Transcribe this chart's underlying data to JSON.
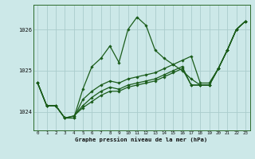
{
  "bg_color": "#cce8e8",
  "grid_color": "#aacccc",
  "line_color": "#1a5c1a",
  "title": "Graphe pression niveau de la mer (hPa)",
  "xlim": [
    -0.5,
    23.5
  ],
  "ylim": [
    1023.55,
    1026.6
  ],
  "yticks": [
    1024,
    1025,
    1026
  ],
  "xtick_labels": [
    "0",
    "1",
    "2",
    "3",
    "4",
    "5",
    "6",
    "7",
    "8",
    "9",
    "10",
    "11",
    "12",
    "13",
    "14",
    "15",
    "16",
    "17",
    "18",
    "19",
    "20",
    "21",
    "22",
    "23"
  ],
  "series": [
    {
      "x": [
        0,
        1,
        2,
        3,
        4,
        5,
        6,
        7,
        8,
        9,
        10,
        11,
        12,
        13,
        14,
        15,
        16,
        17,
        18,
        19,
        20,
        21,
        22,
        23
      ],
      "y": [
        1024.7,
        1024.15,
        1024.15,
        1023.85,
        1023.85,
        1024.55,
        1025.1,
        1025.3,
        1025.6,
        1025.2,
        1026.0,
        1026.3,
        1026.1,
        1025.5,
        1025.3,
        1025.15,
        1025.0,
        1024.8,
        1024.65,
        1024.65,
        1025.05,
        1025.5,
        1026.0,
        1026.2
      ]
    },
    {
      "x": [
        0,
        1,
        2,
        3,
        4,
        5,
        6,
        7,
        8,
        9,
        10,
        11,
        12,
        13,
        14,
        15,
        16,
        17,
        18,
        19,
        20,
        21,
        22,
        23
      ],
      "y": [
        1024.7,
        1024.15,
        1024.15,
        1023.85,
        1023.85,
        1024.3,
        1024.5,
        1024.65,
        1024.75,
        1024.7,
        1024.8,
        1024.85,
        1024.9,
        1024.95,
        1025.05,
        1025.15,
        1025.25,
        1025.35,
        1024.7,
        1024.7,
        1025.05,
        1025.5,
        1026.0,
        1026.2
      ]
    },
    {
      "x": [
        0,
        1,
        2,
        3,
        4,
        5,
        6,
        7,
        8,
        9,
        10,
        11,
        12,
        13,
        14,
        15,
        16,
        17,
        18,
        19,
        20,
        21,
        22,
        23
      ],
      "y": [
        1024.7,
        1024.15,
        1024.15,
        1023.85,
        1023.9,
        1024.15,
        1024.35,
        1024.5,
        1024.6,
        1024.55,
        1024.65,
        1024.7,
        1024.75,
        1024.8,
        1024.9,
        1025.0,
        1025.1,
        1024.65,
        1024.65,
        1024.65,
        1025.05,
        1025.5,
        1026.0,
        1026.2
      ]
    },
    {
      "x": [
        0,
        1,
        2,
        3,
        4,
        5,
        6,
        7,
        8,
        9,
        10,
        11,
        12,
        13,
        14,
        15,
        16,
        17,
        18,
        19,
        20,
        21,
        22,
        23
      ],
      "y": [
        1024.7,
        1024.15,
        1024.15,
        1023.85,
        1023.9,
        1024.1,
        1024.25,
        1024.4,
        1024.5,
        1024.5,
        1024.6,
        1024.65,
        1024.7,
        1024.75,
        1024.85,
        1024.95,
        1025.05,
        1024.65,
        1024.65,
        1024.65,
        1025.05,
        1025.5,
        1026.0,
        1026.2
      ]
    }
  ]
}
